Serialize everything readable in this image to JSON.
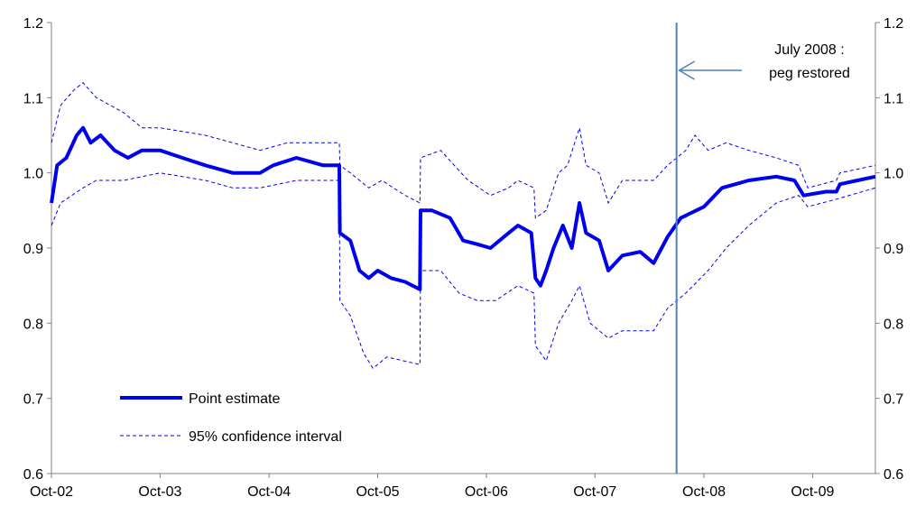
{
  "chart_data": {
    "type": "line",
    "title": "",
    "xlabel": "",
    "ylabel": "",
    "xlim": [
      "2002-10-01",
      "2010-04-30"
    ],
    "ylim": [
      0.6,
      1.2
    ],
    "yticks": [
      "0.6",
      "0.7",
      "0.8",
      "0.9",
      "1.0",
      "1.1",
      "1.2"
    ],
    "xticks": [
      {
        "label": "Oct-02",
        "date": "2002-10-01"
      },
      {
        "label": "Oct-03",
        "date": "2003-10-01"
      },
      {
        "label": "Oct-04",
        "date": "2004-10-01"
      },
      {
        "label": "Oct-05",
        "date": "2005-10-01"
      },
      {
        "label": "Oct-06",
        "date": "2006-10-01"
      },
      {
        "label": "Oct-07",
        "date": "2007-10-01"
      },
      {
        "label": "Oct-08",
        "date": "2008-10-01"
      },
      {
        "label": "Oct-09",
        "date": "2009-10-01"
      }
    ],
    "grid": false,
    "legend_position": "bottom-left",
    "colors": {
      "series": "#0000ee",
      "marker_line": "#4f81bd",
      "axis": "#808080"
    },
    "series": [
      {
        "name": "Point estimate",
        "style": "solid",
        "points": [
          [
            "2002-10-01",
            0.96
          ],
          [
            "2002-10-20",
            1.01
          ],
          [
            "2002-11-20",
            1.02
          ],
          [
            "2002-12-25",
            1.05
          ],
          [
            "2003-01-15",
            1.06
          ],
          [
            "2003-02-10",
            1.04
          ],
          [
            "2003-03-15",
            1.05
          ],
          [
            "2003-05-01",
            1.03
          ],
          [
            "2003-06-15",
            1.02
          ],
          [
            "2003-08-01",
            1.03
          ],
          [
            "2003-10-01",
            1.03
          ],
          [
            "2003-12-15",
            1.02
          ],
          [
            "2004-03-01",
            1.01
          ],
          [
            "2004-06-01",
            1.0
          ],
          [
            "2004-09-01",
            1.0
          ],
          [
            "2004-10-15",
            1.01
          ],
          [
            "2005-01-01",
            1.02
          ],
          [
            "2005-04-01",
            1.01
          ],
          [
            "2005-05-25",
            1.01
          ],
          [
            "2005-05-27",
            0.92
          ],
          [
            "2005-07-01",
            0.91
          ],
          [
            "2005-08-01",
            0.87
          ],
          [
            "2005-09-01",
            0.86
          ],
          [
            "2005-10-01",
            0.87
          ],
          [
            "2005-11-15",
            0.86
          ],
          [
            "2006-01-01",
            0.855
          ],
          [
            "2006-02-20",
            0.845
          ],
          [
            "2006-02-22",
            0.95
          ],
          [
            "2006-04-01",
            0.95
          ],
          [
            "2006-06-01",
            0.94
          ],
          [
            "2006-07-15",
            0.91
          ],
          [
            "2006-09-01",
            0.905
          ],
          [
            "2006-10-15",
            0.9
          ],
          [
            "2006-12-15",
            0.92
          ],
          [
            "2007-01-15",
            0.93
          ],
          [
            "2007-03-01",
            0.92
          ],
          [
            "2007-03-15",
            0.86
          ],
          [
            "2007-04-01",
            0.85
          ],
          [
            "2007-04-20",
            0.87
          ],
          [
            "2007-05-15",
            0.9
          ],
          [
            "2007-06-15",
            0.93
          ],
          [
            "2007-07-15",
            0.9
          ],
          [
            "2007-08-10",
            0.96
          ],
          [
            "2007-09-01",
            0.92
          ],
          [
            "2007-10-15",
            0.91
          ],
          [
            "2007-11-15",
            0.87
          ],
          [
            "2008-01-01",
            0.89
          ],
          [
            "2008-03-01",
            0.895
          ],
          [
            "2008-04-15",
            0.88
          ],
          [
            "2008-06-01",
            0.915
          ],
          [
            "2008-07-15",
            0.94
          ],
          [
            "2008-10-01",
            0.955
          ],
          [
            "2008-12-01",
            0.98
          ],
          [
            "2009-01-15",
            0.985
          ],
          [
            "2009-03-01",
            0.99
          ],
          [
            "2009-06-01",
            0.995
          ],
          [
            "2009-08-01",
            0.99
          ],
          [
            "2009-09-01",
            0.97
          ],
          [
            "2009-11-15",
            0.975
          ],
          [
            "2009-12-20",
            0.975
          ],
          [
            "2010-01-01",
            0.985
          ],
          [
            "2010-03-01",
            0.99
          ],
          [
            "2010-04-30",
            0.995
          ]
        ]
      },
      {
        "name": "95% confidence interval",
        "style": "dashed",
        "band": true,
        "upper": [
          [
            "2002-10-01",
            1.04
          ],
          [
            "2002-11-01",
            1.09
          ],
          [
            "2002-12-15",
            1.11
          ],
          [
            "2003-01-15",
            1.12
          ],
          [
            "2003-03-01",
            1.1
          ],
          [
            "2003-06-01",
            1.08
          ],
          [
            "2003-08-01",
            1.06
          ],
          [
            "2003-10-01",
            1.06
          ],
          [
            "2004-03-01",
            1.05
          ],
          [
            "2004-06-01",
            1.04
          ],
          [
            "2004-09-01",
            1.03
          ],
          [
            "2004-12-01",
            1.04
          ],
          [
            "2005-03-01",
            1.04
          ],
          [
            "2005-05-25",
            1.04
          ],
          [
            "2005-05-27",
            1.01
          ],
          [
            "2005-07-01",
            1.0
          ],
          [
            "2005-09-01",
            0.98
          ],
          [
            "2005-10-15",
            0.99
          ],
          [
            "2006-01-01",
            0.97
          ],
          [
            "2006-02-20",
            0.96
          ],
          [
            "2006-02-22",
            1.02
          ],
          [
            "2006-05-01",
            1.03
          ],
          [
            "2006-06-15",
            1.01
          ],
          [
            "2006-08-01",
            0.99
          ],
          [
            "2006-10-15",
            0.97
          ],
          [
            "2006-12-15",
            0.98
          ],
          [
            "2007-01-15",
            0.99
          ],
          [
            "2007-03-10",
            0.98
          ],
          [
            "2007-03-15",
            0.94
          ],
          [
            "2007-04-20",
            0.95
          ],
          [
            "2007-06-01",
            1.0
          ],
          [
            "2007-07-01",
            1.01
          ],
          [
            "2007-08-10",
            1.06
          ],
          [
            "2007-09-01",
            1.01
          ],
          [
            "2007-10-15",
            1.0
          ],
          [
            "2007-11-15",
            0.96
          ],
          [
            "2008-01-01",
            0.99
          ],
          [
            "2008-04-15",
            0.99
          ],
          [
            "2008-06-01",
            1.01
          ],
          [
            "2008-08-01",
            1.03
          ],
          [
            "2008-09-01",
            1.05
          ],
          [
            "2008-10-15",
            1.03
          ],
          [
            "2008-12-15",
            1.04
          ],
          [
            "2009-03-01",
            1.03
          ],
          [
            "2009-06-01",
            1.02
          ],
          [
            "2009-08-15",
            1.01
          ],
          [
            "2009-09-15",
            0.98
          ],
          [
            "2009-12-20",
            0.99
          ],
          [
            "2010-01-01",
            1.0
          ],
          [
            "2010-04-30",
            1.01
          ]
        ],
        "lower": [
          [
            "2002-10-01",
            0.93
          ],
          [
            "2002-11-01",
            0.96
          ],
          [
            "2003-01-15",
            0.98
          ],
          [
            "2003-03-01",
            0.99
          ],
          [
            "2003-06-01",
            0.99
          ],
          [
            "2003-10-01",
            1.0
          ],
          [
            "2004-03-01",
            0.99
          ],
          [
            "2004-06-01",
            0.98
          ],
          [
            "2004-09-01",
            0.98
          ],
          [
            "2005-01-01",
            0.99
          ],
          [
            "2005-05-25",
            0.99
          ],
          [
            "2005-05-27",
            0.83
          ],
          [
            "2005-07-01",
            0.81
          ],
          [
            "2005-08-15",
            0.76
          ],
          [
            "2005-09-15",
            0.74
          ],
          [
            "2005-11-01",
            0.755
          ],
          [
            "2006-02-20",
            0.745
          ],
          [
            "2006-02-22",
            0.87
          ],
          [
            "2006-05-01",
            0.87
          ],
          [
            "2006-07-01",
            0.84
          ],
          [
            "2006-09-01",
            0.83
          ],
          [
            "2006-11-01",
            0.83
          ],
          [
            "2007-01-15",
            0.85
          ],
          [
            "2007-03-10",
            0.84
          ],
          [
            "2007-03-15",
            0.77
          ],
          [
            "2007-04-20",
            0.75
          ],
          [
            "2007-06-01",
            0.8
          ],
          [
            "2007-07-15",
            0.83
          ],
          [
            "2007-08-10",
            0.85
          ],
          [
            "2007-09-15",
            0.8
          ],
          [
            "2007-11-15",
            0.78
          ],
          [
            "2008-01-01",
            0.79
          ],
          [
            "2008-04-15",
            0.79
          ],
          [
            "2008-06-01",
            0.82
          ],
          [
            "2008-08-01",
            0.84
          ],
          [
            "2008-10-15",
            0.87
          ],
          [
            "2008-12-15",
            0.9
          ],
          [
            "2009-03-01",
            0.93
          ],
          [
            "2009-06-01",
            0.96
          ],
          [
            "2009-08-15",
            0.97
          ],
          [
            "2009-09-15",
            0.955
          ],
          [
            "2009-12-20",
            0.965
          ],
          [
            "2010-04-30",
            0.98
          ]
        ]
      }
    ],
    "marker": {
      "date": "2008-07-01",
      "label_lines": [
        "July 2008 :",
        "peg restored"
      ]
    }
  }
}
